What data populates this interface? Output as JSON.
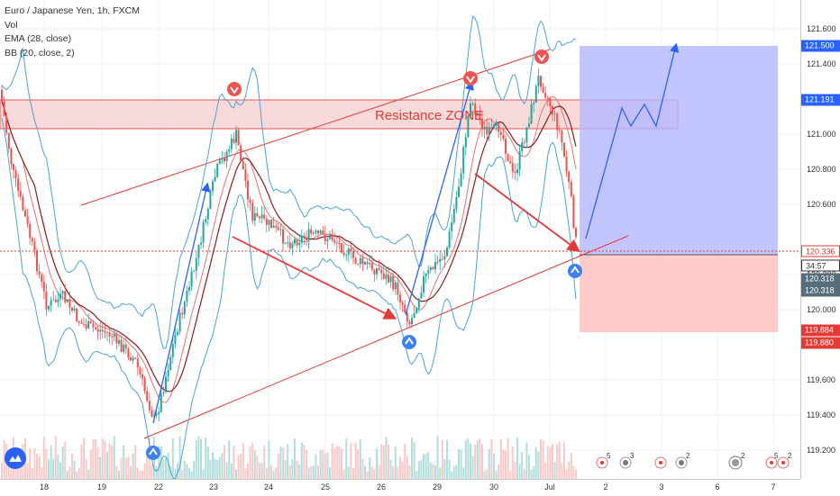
{
  "legend": {
    "symbol": "Euro / Japanese Yen, 1h, FXCM",
    "line2": "Vol",
    "line3": "EMA (28, close)",
    "line4": "BB (20, close, 2)"
  },
  "annotation": {
    "zone_label": "Resistance ZONE"
  },
  "price_axis": {
    "ticks": [
      "121.600",
      "121.400",
      "121.000",
      "120.800",
      "120.600",
      "120.200",
      "120.000",
      "119.600",
      "119.400",
      "119.200"
    ],
    "badges": [
      {
        "label": "121.500",
        "color": "#2962ff"
      },
      {
        "label": "121.191",
        "color": "#2962ff"
      },
      {
        "label": "120.336",
        "color": "#ffffff",
        "text": "#e53935"
      },
      {
        "label": "34:57",
        "color": "#ffffff",
        "text": "#333333"
      },
      {
        "label": "120.318",
        "color": "#546e7a"
      },
      {
        "label": "120.318",
        "color": "#546e7a"
      },
      {
        "label": "119.884",
        "color": "#e53935"
      },
      {
        "label": "119.880",
        "color": "#e53935"
      }
    ]
  },
  "time_axis": {
    "ticks": [
      "18",
      "19",
      "22",
      "23",
      "24",
      "25",
      "26",
      "29",
      "30",
      "Jul",
      "2",
      "3",
      "6",
      "7"
    ]
  },
  "colors": {
    "up": "#26a69a",
    "down": "#ef5350",
    "channel": "#e53935",
    "bb": "#4aa3d6",
    "ema": "#8b1c1c",
    "profit_zone": "#b3b6ff",
    "loss_zone": "#ffb3b3",
    "resistance_zone": "#f8cfcf",
    "arrow_blue": "#2962ff",
    "arrow_red": "#e53935"
  },
  "chart_data": {
    "type": "line",
    "title": "Euro / Japanese Yen, 1h, FXCM",
    "xlabel": "",
    "ylabel": "",
    "ylim": [
      119.12,
      121.72
    ],
    "series": [
      {
        "name": "EURJPY",
        "x": [
          "18",
          "19",
          "22",
          "23",
          "24",
          "25",
          "26",
          "29",
          "30",
          "Jul"
        ],
        "values": [
          120.95,
          119.85,
          119.35,
          121.05,
          120.45,
          120.3,
          119.95,
          120.7,
          121.2,
          120.33
        ]
      }
    ],
    "annotations": {
      "resistance_zone": [
        121.03,
        121.21
      ],
      "take_profit": 121.5,
      "entry": 120.336,
      "stop": 119.884
    }
  }
}
